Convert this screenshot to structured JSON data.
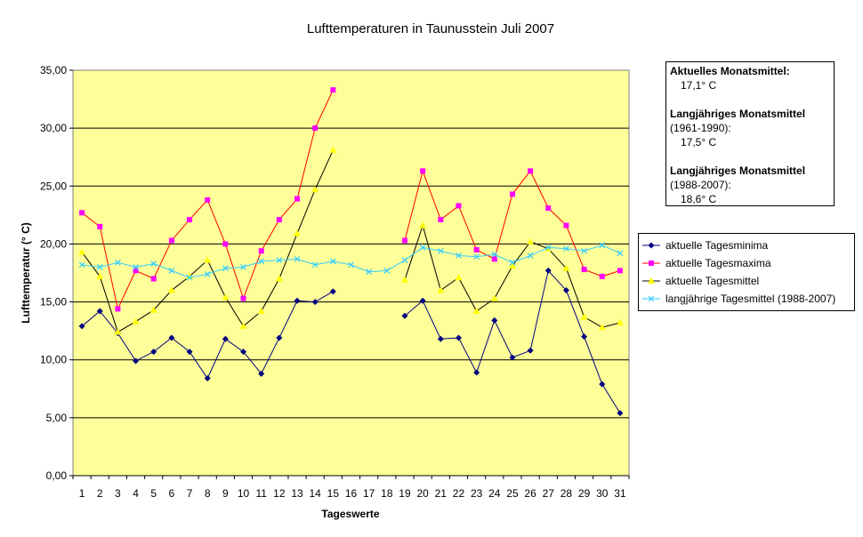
{
  "chart_data": {
    "type": "line",
    "title": "Lufttemperaturen in Taunusstein  Juli  2007",
    "xlabel": "Tageswerte",
    "ylabel": "Lufttemperatur (° C)",
    "ylim": [
      0,
      35
    ],
    "y_ticks": [
      {
        "value": 0,
        "label": "0,00"
      },
      {
        "value": 5,
        "label": "5,00"
      },
      {
        "value": 10,
        "label": "10,00"
      },
      {
        "value": 15,
        "label": "15,00"
      },
      {
        "value": 20,
        "label": "20,00"
      },
      {
        "value": 25,
        "label": "25,00"
      },
      {
        "value": 30,
        "label": "30,00"
      },
      {
        "value": 35,
        "label": "35,00"
      }
    ],
    "categories": [
      "1",
      "2",
      "3",
      "4",
      "5",
      "6",
      "7",
      "8",
      "9",
      "10",
      "11",
      "12",
      "13",
      "14",
      "15",
      "16",
      "17",
      "18",
      "19",
      "20",
      "21",
      "22",
      "23",
      "24",
      "25",
      "26",
      "27",
      "28",
      "29",
      "30",
      "31"
    ],
    "background": "#ffff99",
    "gridlines": true,
    "series": [
      {
        "name": "aktuelle Tagesminima",
        "color": "#000080",
        "marker": "diamond",
        "values": [
          12.9,
          14.2,
          12.3,
          9.9,
          10.7,
          11.9,
          10.7,
          8.4,
          11.8,
          10.7,
          8.8,
          11.9,
          15.1,
          15.0,
          15.9,
          null,
          null,
          null,
          13.8,
          15.1,
          11.8,
          11.9,
          8.9,
          13.4,
          10.2,
          10.8,
          17.7,
          16.0,
          12.0,
          7.9,
          5.4
        ]
      },
      {
        "name": "aktuelle Tagesmaxima",
        "color": "#ff00ff",
        "marker": "square",
        "values": [
          22.7,
          21.5,
          14.4,
          17.7,
          17.0,
          20.3,
          22.1,
          23.8,
          20.0,
          15.3,
          19.4,
          22.1,
          23.9,
          30.0,
          33.3,
          null,
          null,
          null,
          20.3,
          26.3,
          22.1,
          23.3,
          19.5,
          18.7,
          24.3,
          26.3,
          23.1,
          21.6,
          17.8,
          17.2,
          17.7
        ]
      },
      {
        "name": "aktuelle Tagesmittel",
        "color": "#ffff00",
        "marker": "triangle",
        "values": [
          19.3,
          17.2,
          12.4,
          13.3,
          14.3,
          16.0,
          17.2,
          18.6,
          15.4,
          12.9,
          14.2,
          17.0,
          20.9,
          24.7,
          28.1,
          null,
          null,
          null,
          16.9,
          21.6,
          16.0,
          17.1,
          14.2,
          15.3,
          18.1,
          20.2,
          19.6,
          17.9,
          13.7,
          12.8,
          13.2
        ]
      },
      {
        "name": "langjährige Tagesmittel (1988-2007)",
        "color": "#33ccff",
        "marker": "x",
        "values": [
          18.2,
          18.0,
          18.4,
          18.0,
          18.3,
          17.7,
          17.1,
          17.4,
          17.9,
          18.0,
          18.5,
          18.6,
          18.7,
          18.2,
          18.5,
          18.2,
          17.6,
          17.7,
          18.6,
          19.7,
          19.4,
          19.0,
          18.9,
          19.1,
          18.4,
          19.0,
          19.7,
          19.6,
          19.4,
          19.9,
          19.2
        ]
      }
    ]
  },
  "info_box": {
    "current_heading": "Aktuelles Monatsmittel:",
    "current_value": "17,1° C",
    "longterm1_heading": "Langjähriges Monatsmittel",
    "longterm1_period": "(1961-1990):",
    "longterm1_value": "17,5° C",
    "longterm2_heading": "Langjähriges Monatsmittel",
    "longterm2_period": "(1988-2007):",
    "longterm2_value": "18,6° C"
  }
}
